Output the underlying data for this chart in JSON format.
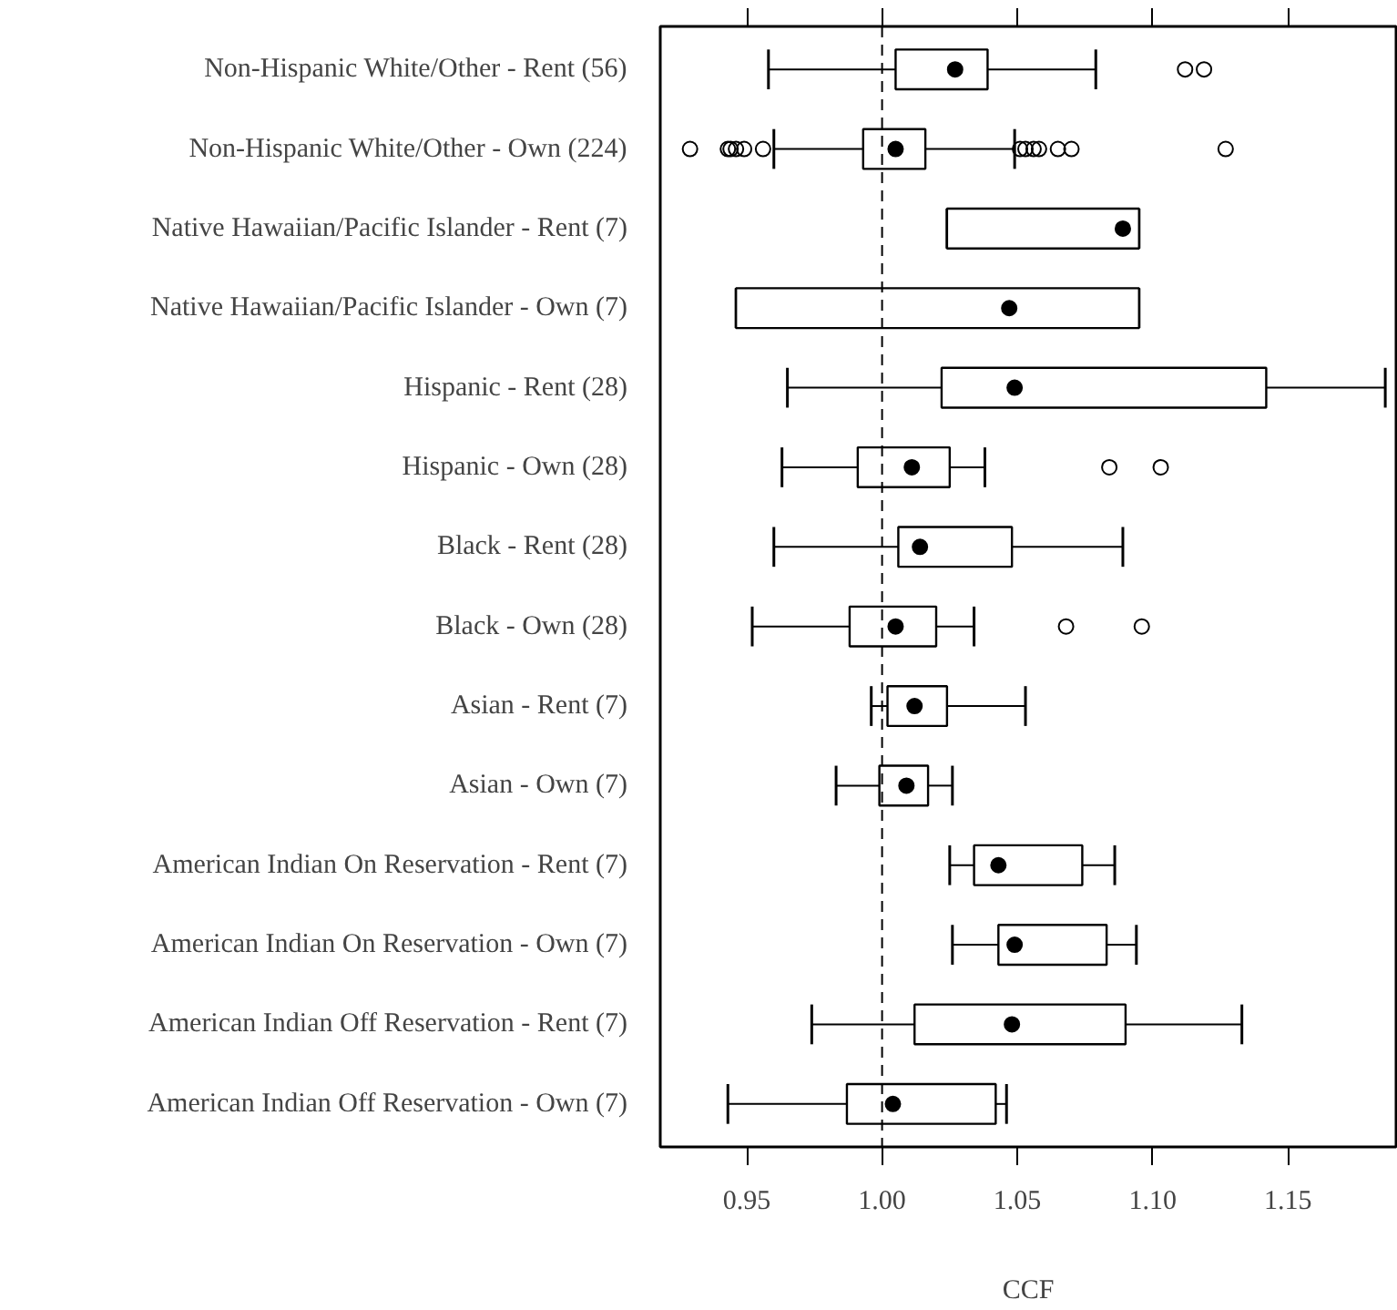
{
  "chart_data": {
    "type": "box",
    "orientation": "horizontal",
    "xlabel": "CCF",
    "categories": [
      "Non-Hispanic White/Other - Rent (56)",
      "Non-Hispanic White/Other - Own (224)",
      "Native Hawaiian/Pacific Islander - Rent (7)",
      "Native Hawaiian/Pacific Islander - Own (7)",
      "Hispanic - Rent (28)",
      "Hispanic - Own (28)",
      "Black - Rent (28)",
      "Black - Own (28)",
      "Asian - Rent (7)",
      "Asian - Own (7)",
      "American Indian On Reservation - Rent (7)",
      "American Indian On Reservation - Own (7)",
      "American Indian Off Reservation - Rent (7)",
      "American Indian Off Reservation - Own (7)"
    ],
    "boxes": [
      {
        "low": 0.958,
        "q1": 1.005,
        "median": 1.027,
        "q3": 1.039,
        "high": 1.079,
        "outliers": [
          1.112,
          1.119
        ]
      },
      {
        "low": 0.96,
        "q1": 0.993,
        "median": 1.005,
        "q3": 1.016,
        "high": 1.049,
        "outliers": [
          0.929,
          0.943,
          0.944,
          0.946,
          0.949,
          0.956,
          1.051,
          1.053,
          1.056,
          1.058,
          1.065,
          1.07,
          1.127
        ]
      },
      {
        "low": 1.024,
        "q1": 1.024,
        "median": 1.089,
        "q3": 1.095,
        "high": 1.095
      },
      {
        "low": 0.946,
        "q1": 0.946,
        "median": 1.047,
        "q3": 1.095,
        "high": 1.095
      },
      {
        "low": 0.965,
        "q1": 1.022,
        "median": 1.049,
        "q3": 1.142,
        "high": 1.186
      },
      {
        "low": 0.963,
        "q1": 0.991,
        "median": 1.011,
        "q3": 1.025,
        "high": 1.038,
        "outliers": [
          1.084,
          1.103
        ]
      },
      {
        "low": 0.96,
        "q1": 1.006,
        "median": 1.014,
        "q3": 1.048,
        "high": 1.089
      },
      {
        "low": 0.952,
        "q1": 0.988,
        "median": 1.005,
        "q3": 1.02,
        "high": 1.034,
        "outliers": [
          1.068,
          1.096
        ]
      },
      {
        "low": 0.996,
        "q1": 1.002,
        "median": 1.012,
        "q3": 1.024,
        "high": 1.053
      },
      {
        "low": 0.983,
        "q1": 0.999,
        "median": 1.009,
        "q3": 1.017,
        "high": 1.026
      },
      {
        "low": 1.025,
        "q1": 1.034,
        "median": 1.043,
        "q3": 1.074,
        "high": 1.086
      },
      {
        "low": 1.026,
        "q1": 1.043,
        "median": 1.049,
        "q3": 1.083,
        "high": 1.094
      },
      {
        "low": 0.974,
        "q1": 1.012,
        "median": 1.048,
        "q3": 1.09,
        "high": 1.133
      },
      {
        "low": 0.943,
        "q1": 0.987,
        "median": 1.004,
        "q3": 1.042,
        "high": 1.046
      }
    ],
    "xlim": [
      0.918,
      1.19
    ],
    "xticks": [
      {
        "value": 0.95,
        "label": "0.95"
      },
      {
        "value": 1.0,
        "label": "1.00"
      },
      {
        "value": 1.05,
        "label": "1.05"
      },
      {
        "value": 1.1,
        "label": "1.10"
      },
      {
        "value": 1.15,
        "label": "1.15"
      }
    ],
    "ref_lines": [
      {
        "axis": "x",
        "value": 1.0,
        "label": null,
        "line_style": "dashed",
        "color": "#000000"
      }
    ],
    "marker": "circle",
    "grid": false
  }
}
